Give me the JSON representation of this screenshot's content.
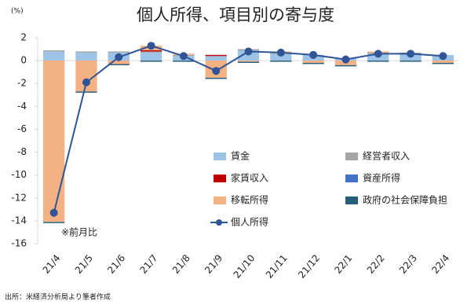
{
  "chart_data": {
    "type": "bar",
    "title": "個人所得、項目別の寄与度",
    "unit_label": "(%)",
    "note": "※前月比",
    "source": "出所：米経済分析局より筆者作成",
    "categories": [
      "21/4",
      "21/5",
      "21/6",
      "21/7",
      "21/8",
      "21/9",
      "21/10",
      "21/11",
      "21/12",
      "22/1",
      "22/2",
      "22/3",
      "22/4"
    ],
    "ylim": [
      -16,
      2
    ],
    "yticks": [
      2,
      0,
      -2,
      -4,
      -6,
      -8,
      -10,
      -12,
      -14,
      -16
    ],
    "grid": false,
    "stacked": true,
    "series": [
      {
        "name": "賃金",
        "color": "#9dc3e6",
        "values": [
          0.8,
          0.7,
          0.7,
          0.7,
          0.4,
          0.4,
          0.9,
          0.6,
          0.5,
          0.2,
          0.6,
          0.6,
          0.5
        ]
      },
      {
        "name": "経営者収入",
        "color": "#a5a5a5",
        "values": [
          0.1,
          0.1,
          0.1,
          0.1,
          0.1,
          0,
          0.1,
          0.1,
          0,
          0,
          0.1,
          0.1,
          0
        ]
      },
      {
        "name": "家賃収入",
        "color": "#c00000",
        "values": [
          0,
          0,
          0,
          0.1,
          0,
          0.1,
          0,
          0,
          0,
          0,
          0,
          0,
          0
        ]
      },
      {
        "name": "資産所得",
        "color": "#4472c4",
        "values": [
          0,
          0,
          0,
          0,
          0,
          0,
          0,
          0,
          0,
          0,
          0,
          0,
          0
        ]
      },
      {
        "name": "移転所得",
        "color": "#f4b183",
        "values": [
          -14.1,
          -2.7,
          -0.3,
          0.4,
          0.1,
          -1.5,
          -0.1,
          0.1,
          -0.2,
          -0.4,
          0.1,
          0,
          -0.2
        ]
      },
      {
        "name": "政府の社会保障負担",
        "color": "#255e79",
        "values": [
          -0.1,
          -0.1,
          -0.1,
          -0.1,
          -0.1,
          -0.1,
          -0.1,
          -0.1,
          -0.1,
          -0.1,
          -0.1,
          -0.1,
          -0.1
        ]
      },
      {
        "name": "個人所得",
        "type": "line",
        "color": "#2f5597",
        "values": [
          -13.3,
          -1.9,
          0.3,
          1.3,
          0.4,
          -0.9,
          0.8,
          0.7,
          0.5,
          0.1,
          0.6,
          0.6,
          0.4
        ]
      }
    ]
  }
}
